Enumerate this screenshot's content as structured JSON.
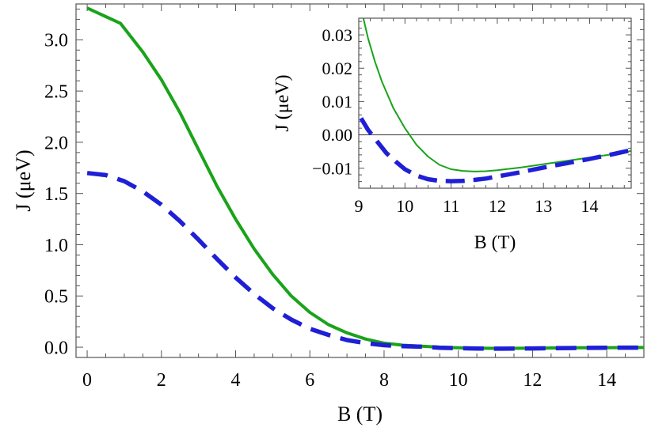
{
  "chart_data": [
    {
      "type": "line",
      "title": "",
      "xlabel": "B (T)",
      "ylabel": "J (μeV)",
      "xlim": [
        -0.3,
        15
      ],
      "ylim": [
        -0.1,
        3.35
      ],
      "xticks": [
        "0",
        "2",
        "4",
        "6",
        "8",
        "10",
        "12",
        "14"
      ],
      "yticks": [
        "0.0",
        "0.5",
        "1.0",
        "1.5",
        "2.0",
        "2.5",
        "3.0"
      ],
      "grid": false,
      "series": [
        {
          "style": "solid",
          "color": "#1aa31a",
          "x": [
            0,
            0.9,
            1.5,
            2,
            2.5,
            3,
            3.5,
            4,
            4.5,
            5,
            5.5,
            6,
            6.5,
            7,
            7.5,
            8,
            8.5,
            9,
            9.5,
            10,
            10.5,
            11,
            12,
            13,
            14,
            15
          ],
          "y": [
            3.31,
            3.16,
            2.88,
            2.61,
            2.29,
            1.93,
            1.57,
            1.25,
            0.96,
            0.71,
            0.5,
            0.34,
            0.22,
            0.14,
            0.08,
            0.04,
            0.02,
            0.01,
            0.0,
            -0.005,
            -0.009,
            -0.011,
            -0.009,
            -0.006,
            -0.004,
            -0.003
          ]
        },
        {
          "style": "dashed",
          "color": "#1f1fd6",
          "x": [
            0,
            0.5,
            1,
            1.5,
            2,
            2.5,
            3,
            3.5,
            4,
            4.5,
            5,
            5.5,
            6,
            6.5,
            7,
            7.5,
            8,
            8.5,
            9,
            9.5,
            10,
            10.5,
            11,
            12,
            13,
            14,
            15
          ],
          "y": [
            1.7,
            1.68,
            1.62,
            1.52,
            1.39,
            1.23,
            1.05,
            0.86,
            0.68,
            0.52,
            0.38,
            0.27,
            0.18,
            0.12,
            0.07,
            0.04,
            0.02,
            0.01,
            0.005,
            -0.005,
            -0.01,
            -0.013,
            -0.014,
            -0.012,
            -0.008,
            -0.005,
            -0.004
          ]
        }
      ]
    },
    {
      "type": "line",
      "title": "",
      "xlabel": "B (T)",
      "ylabel": "J (μeV)",
      "xlim": [
        9,
        14.9
      ],
      "ylim": [
        -0.016,
        0.035
      ],
      "xticks": [
        "9",
        "10",
        "11",
        "12",
        "13",
        "14"
      ],
      "yticks": [
        "0.03",
        "0.02",
        "0.01",
        "0.00",
        "−0.01"
      ],
      "grid": false,
      "zero_line": true,
      "series": [
        {
          "style": "solid",
          "color": "#1aa31a",
          "x": [
            9.1,
            9.2,
            9.35,
            9.5,
            9.75,
            10,
            10.25,
            10.5,
            10.75,
            11,
            11.25,
            11.5,
            11.75,
            12,
            12.5,
            13,
            13.5,
            14,
            14.5,
            14.9
          ],
          "y": [
            0.035,
            0.029,
            0.022,
            0.016,
            0.008,
            0.002,
            -0.003,
            -0.0065,
            -0.009,
            -0.0103,
            -0.0108,
            -0.011,
            -0.0109,
            -0.0106,
            -0.0098,
            -0.0088,
            -0.0078,
            -0.0068,
            -0.0058,
            -0.0048
          ]
        },
        {
          "style": "dashed",
          "color": "#1f1fd6",
          "x": [
            9.05,
            9.2,
            9.4,
            9.6,
            9.8,
            10,
            10.25,
            10.5,
            10.75,
            11,
            11.25,
            11.5,
            11.75,
            12,
            12.5,
            13,
            13.5,
            14,
            14.5,
            14.9
          ],
          "y": [
            0.005,
            0.0015,
            -0.002,
            -0.0055,
            -0.008,
            -0.0103,
            -0.0122,
            -0.0133,
            -0.0138,
            -0.0139,
            -0.0138,
            -0.0135,
            -0.0131,
            -0.0125,
            -0.0112,
            -0.0098,
            -0.0085,
            -0.0072,
            -0.0058,
            -0.0046
          ]
        }
      ]
    }
  ]
}
